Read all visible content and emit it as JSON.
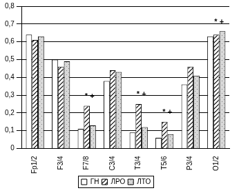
{
  "chart_data": {
    "type": "bar",
    "categories": [
      "Fp1/2",
      "F3/4",
      "F7/8",
      "C3/4",
      "T3/4",
      "T5/6",
      "P3/4",
      "O1/2"
    ],
    "series": [
      {
        "name": "ГН",
        "color": "#ffffff",
        "values": [
          0.64,
          0.5,
          0.11,
          0.38,
          0.09,
          0.06,
          0.36,
          0.63
        ]
      },
      {
        "name": "ЛРО",
        "color": "#000000",
        "values": [
          0.61,
          0.46,
          0.24,
          0.44,
          0.25,
          0.15,
          0.46,
          0.64
        ]
      },
      {
        "name": "ЛТО",
        "color": "#808080",
        "values": [
          0.63,
          0.49,
          0.13,
          0.43,
          0.12,
          0.08,
          0.41,
          0.66
        ]
      }
    ],
    "ylim": [
      0,
      0.8
    ],
    "yticks": [
      0,
      {
        "value": 0.1,
        "label": "0,1"
      },
      {
        "value": 0.2,
        "label": "0,2"
      },
      {
        "value": 0.3,
        "label": "0,3"
      },
      {
        "value": 0.4,
        "label": "0,4"
      },
      {
        "value": 0.5,
        "label": "0,5"
      },
      {
        "value": 0.6,
        "label": "0,6"
      },
      {
        "value": 0.7,
        "label": "0,7"
      },
      {
        "value": 0.8,
        "label": "0,8"
      }
    ],
    "grid": true,
    "legend": "bottom",
    "annotations": [
      {
        "category": "F7/8",
        "text": "* +"
      },
      {
        "category": "T3/4",
        "text": "* +"
      },
      {
        "category": "T5/6",
        "text": "* +"
      },
      {
        "category": "O1/2",
        "text": "* +"
      }
    ]
  }
}
